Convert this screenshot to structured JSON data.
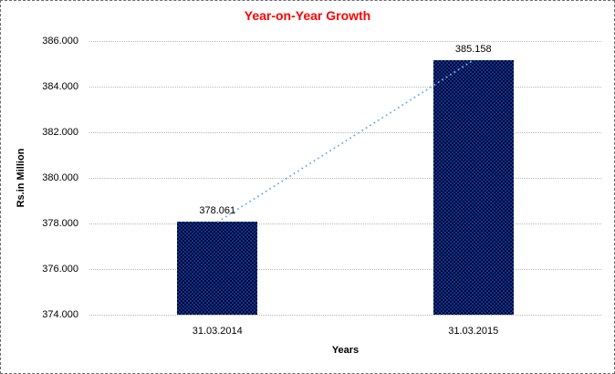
{
  "chart_data": {
    "type": "bar",
    "title": "Year-on-Year Growth",
    "xlabel": "Years",
    "ylabel": "Rs.in Million",
    "categories": [
      "31.03.2014",
      "31.03.2015"
    ],
    "values": [
      378.061,
      385.158
    ],
    "data_labels": [
      "378.061",
      "385.158"
    ],
    "ylim": [
      374,
      386
    ],
    "ytick_step": 2,
    "ytick_labels": [
      "374.000",
      "376.000",
      "378.000",
      "380.000",
      "382.000",
      "384.000",
      "386.000"
    ],
    "grid": "horizontal-dotted",
    "legend": "none",
    "trendline": {
      "style": "dotted",
      "points": [
        378.061,
        385.158
      ]
    }
  },
  "colors": {
    "title": "#FF0000",
    "bar_pattern_blue": "#0a36a0",
    "bar_pattern_dark": "#01041f",
    "trendline": "#7aaede",
    "gridline": "#b8b8b8",
    "text": "#000000",
    "frame_border": "#6b6b6b"
  }
}
